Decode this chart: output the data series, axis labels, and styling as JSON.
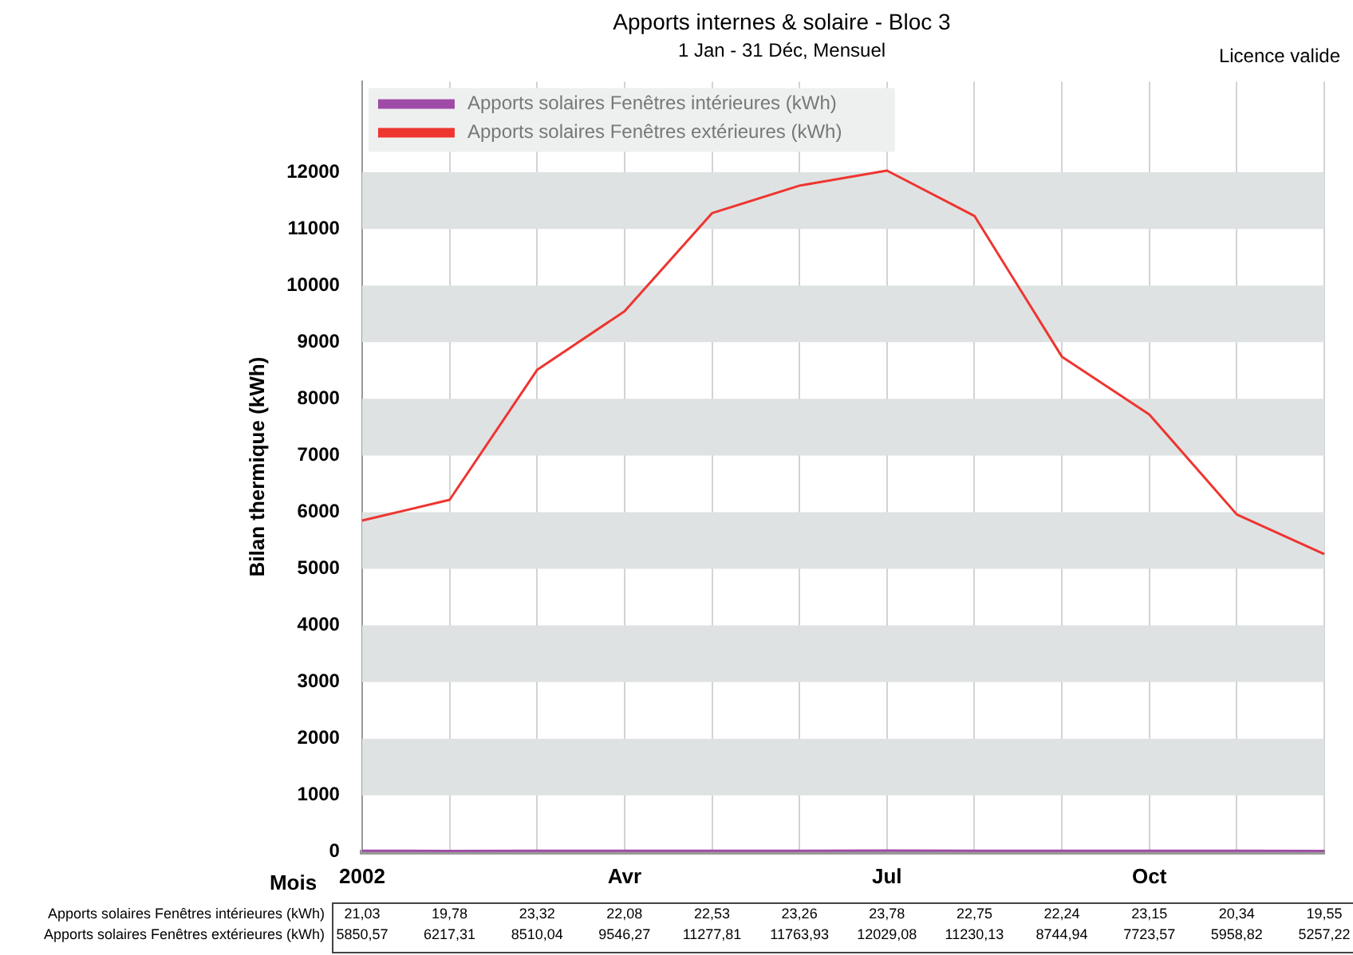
{
  "chart_data": {
    "type": "line",
    "title": "Apports internes & solaire - Bloc 3",
    "subtitle": "1 Jan - 31 Déc, Mensuel",
    "xlabel": "Mois",
    "ylabel": "Bilan thermique (kWh)",
    "annotations": [
      "Licence valide"
    ],
    "categories": [
      "2002",
      null,
      null,
      "Avr",
      null,
      null,
      "Jul",
      null,
      null,
      "Oct",
      null,
      null
    ],
    "series": [
      {
        "name": "Apports solaires Fenêtres intérieures (kWh)",
        "color": "#a04aa8",
        "values": [
          21.03,
          19.78,
          23.32,
          22.08,
          22.53,
          23.26,
          23.78,
          22.75,
          22.24,
          23.15,
          20.34,
          19.55
        ],
        "value_labels": [
          "21,03",
          "19,78",
          "23,32",
          "22,08",
          "22,53",
          "23,26",
          "23,78",
          "22,75",
          "22,24",
          "23,15",
          "20,34",
          "19,55"
        ]
      },
      {
        "name": "Apports solaires Fenêtres extérieures (kWh)",
        "color": "#ee3530",
        "values": [
          5850.57,
          6217.31,
          8510.04,
          9546.27,
          11277.81,
          11763.93,
          12029.08,
          11230.13,
          8744.94,
          7723.57,
          5958.82,
          5257.22
        ],
        "value_labels": [
          "5850,57",
          "6217,31",
          "8510,04",
          "9546,27",
          "11277,81",
          "11763,93",
          "12029,08",
          "11230,13",
          "8744,94",
          "7723,57",
          "5958,82",
          "5257,22"
        ]
      }
    ],
    "ylim": [
      0,
      13600
    ],
    "yticks": [
      0,
      1000,
      2000,
      3000,
      4000,
      5000,
      6000,
      7000,
      8000,
      9000,
      10000,
      11000,
      12000
    ],
    "grid": true,
    "legend": "top left",
    "marker": "none",
    "line_style": "solid"
  }
}
